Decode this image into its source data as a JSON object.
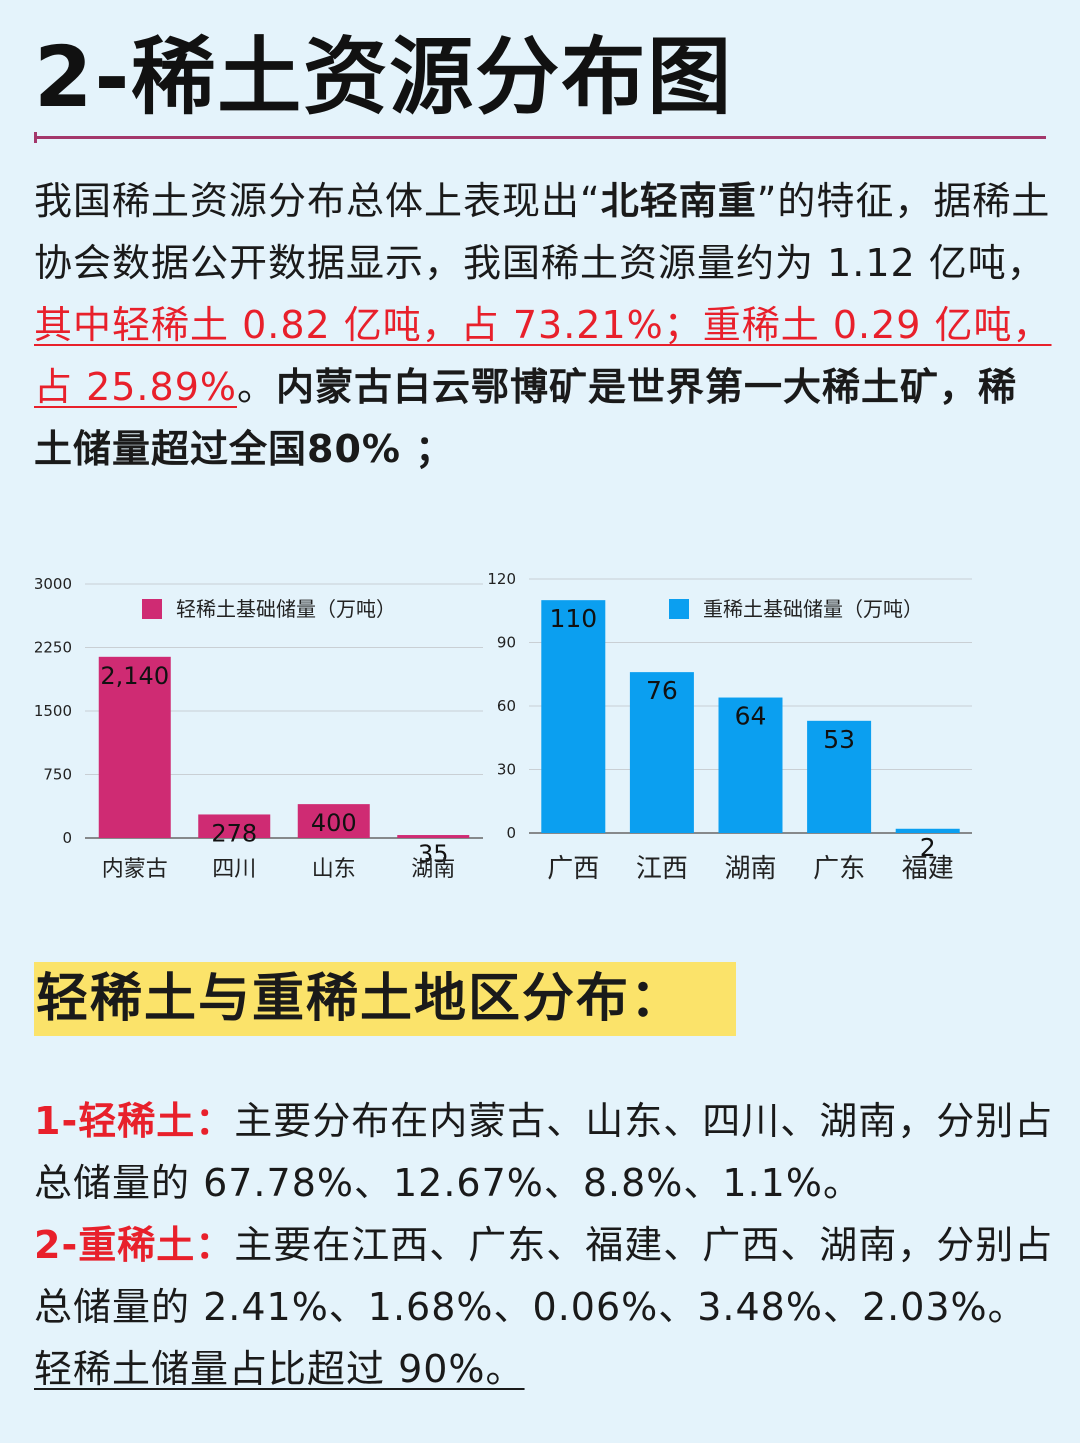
{
  "title": "2-稀土资源分布图",
  "intro": {
    "p1": "我国稀土资源分布总体上表现出“",
    "p1_bold": "北轻南重",
    "p1_end": "”的特征，据稀土协会数据公开数据显示，我国稀土资源量约为 1.12 亿吨，",
    "red": "其中轻稀土 0.82 亿吨，占 73.21%；重稀土 0.29 亿吨，占 25.89%",
    "after_red": "。",
    "bold_end": "内蒙古白云鄂博矿是世界第一大稀土矿，稀土储量超过全国80% ；"
  },
  "section_title": "轻稀土与重稀土地区分布：",
  "light": {
    "label": "1-轻稀土：",
    "text": "主要分布在内蒙古、山东、四川、湖南，分别占总储量的 67.78%、12.67%、8.8%、1.1%。"
  },
  "heavy": {
    "label": "2-重稀土：",
    "text": "主要在江西、广东、福建、广西、湖南，分别占总储量的 2.41%、1.68%、0.06%、3.48%、2.03%。",
    "underline": "轻稀土储量占比超过 90%。"
  },
  "chart_data": [
    {
      "type": "bar",
      "categories": [
        "内蒙古",
        "四川",
        "山东",
        "湖南"
      ],
      "series": [
        {
          "name": "轻稀土基础储量（万吨）",
          "values": [
            2140,
            278,
            400,
            35
          ]
        }
      ],
      "data_labels": [
        "2,140",
        "278",
        "400",
        "35"
      ],
      "ylim": [
        0,
        3000
      ],
      "yticks": [
        "0",
        "750",
        "1500",
        "2250",
        "3000"
      ],
      "grid": true,
      "legend_position": "top-right",
      "color": "#cf2b73"
    },
    {
      "type": "bar",
      "categories": [
        "广西",
        "江西",
        "湖南",
        "广东",
        "福建"
      ],
      "series": [
        {
          "name": "重稀土基础储量（万吨）",
          "values": [
            110,
            76,
            64,
            53,
            2
          ]
        }
      ],
      "data_labels": [
        "110",
        "76",
        "64",
        "53",
        "2"
      ],
      "ylim": [
        0,
        120
      ],
      "yticks": [
        "0",
        "30",
        "60",
        "90",
        "120"
      ],
      "grid": true,
      "legend_position": "top-right",
      "color": "#0b9ff0"
    }
  ]
}
